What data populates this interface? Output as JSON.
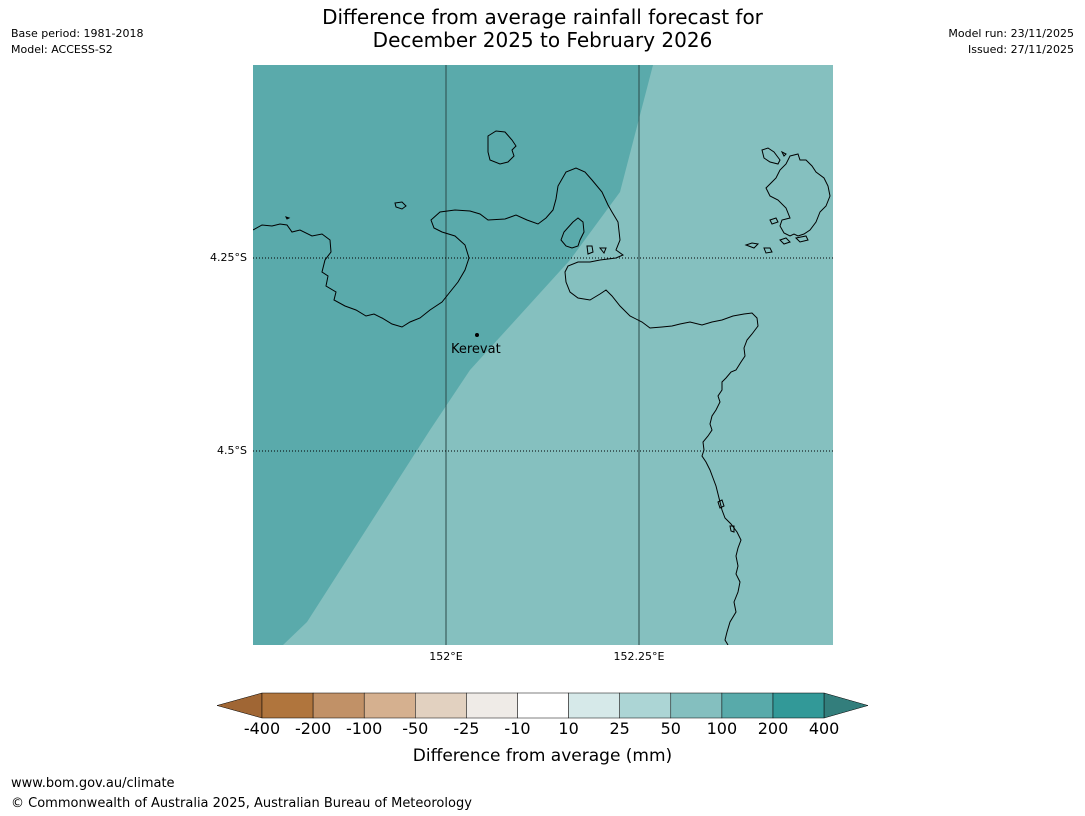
{
  "title": {
    "line1": "Difference from average rainfall forecast for",
    "line2": "December 2025 to February 2026"
  },
  "meta_left": {
    "base_period": "Base period: 1981-2018",
    "model": "Model: ACCESS-S2"
  },
  "meta_right": {
    "model_run": "Model run: 23/11/2025",
    "issued": "Issued: 27/11/2025"
  },
  "map": {
    "lat_labels": [
      "4.25°S",
      "4.5°S"
    ],
    "lon_labels": [
      "152°E",
      "152.25°E"
    ],
    "place": {
      "name": "Kerevat"
    },
    "colors": {
      "region_100_200": "#5aaaab",
      "region_50_100": "#85c0bf",
      "coastline": "#000000",
      "gridline": "#2b4a48"
    }
  },
  "colorbar": {
    "title": "Difference from average (mm)",
    "ticks": [
      "-400",
      "-200",
      "-100",
      "-50",
      "-25",
      "-10",
      "10",
      "25",
      "50",
      "100",
      "200",
      "400"
    ],
    "colors": [
      "#a06634",
      "#b0753d",
      "#c19167",
      "#d5b08f",
      "#e2d1c0",
      "#efebe7",
      "#ffffff",
      "#d6e9e9",
      "#acd5d5",
      "#84bfbf",
      "#58aaaa",
      "#329998",
      "#337e7c"
    ]
  },
  "footer": {
    "url": "www.bom.gov.au/climate",
    "copyright": "© Commonwealth of Australia 2025, Australian Bureau of Meteorology"
  }
}
